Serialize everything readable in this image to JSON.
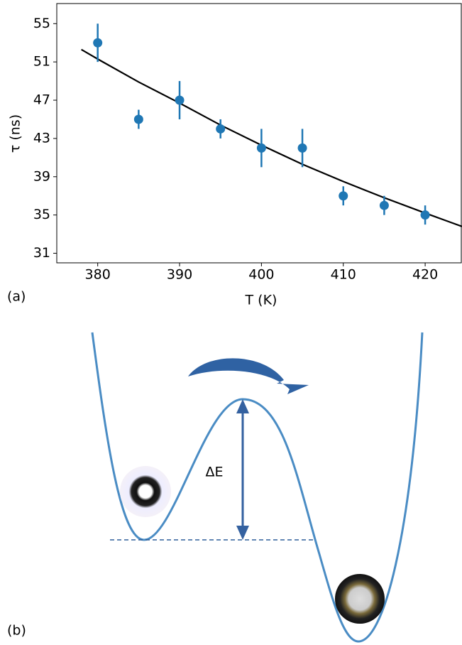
{
  "chart_data": {
    "type": "scatter",
    "xlabel": "T (K)",
    "ylabel": "τ (ns)",
    "x": [
      380,
      385,
      390,
      395,
      400,
      405,
      410,
      415,
      420
    ],
    "values": [
      53,
      45,
      47,
      44,
      42,
      42,
      37,
      36,
      35
    ],
    "errors": [
      2,
      1,
      2,
      1,
      2,
      2,
      1,
      1,
      1
    ],
    "color": "#1f77b4",
    "fit": {
      "x": [
        378,
        380,
        385,
        390,
        395,
        400,
        405,
        410,
        415,
        420,
        424.5
      ],
      "values": [
        52.3,
        51.3,
        48.9,
        46.7,
        44.4,
        42.3,
        40.3,
        38.5,
        36.8,
        35.2,
        33.8
      ],
      "color": "#000000"
    },
    "xlim": [
      375,
      424.5
    ],
    "ylim": [
      30,
      57.1
    ],
    "xticks": [
      380,
      390,
      400,
      410,
      420
    ],
    "yticks": [
      31,
      35,
      39,
      43,
      47,
      51,
      55
    ]
  },
  "panel_labels": [
    "(a)",
    "(b)"
  ],
  "diagram": {
    "barrier_label": "ΔE"
  }
}
